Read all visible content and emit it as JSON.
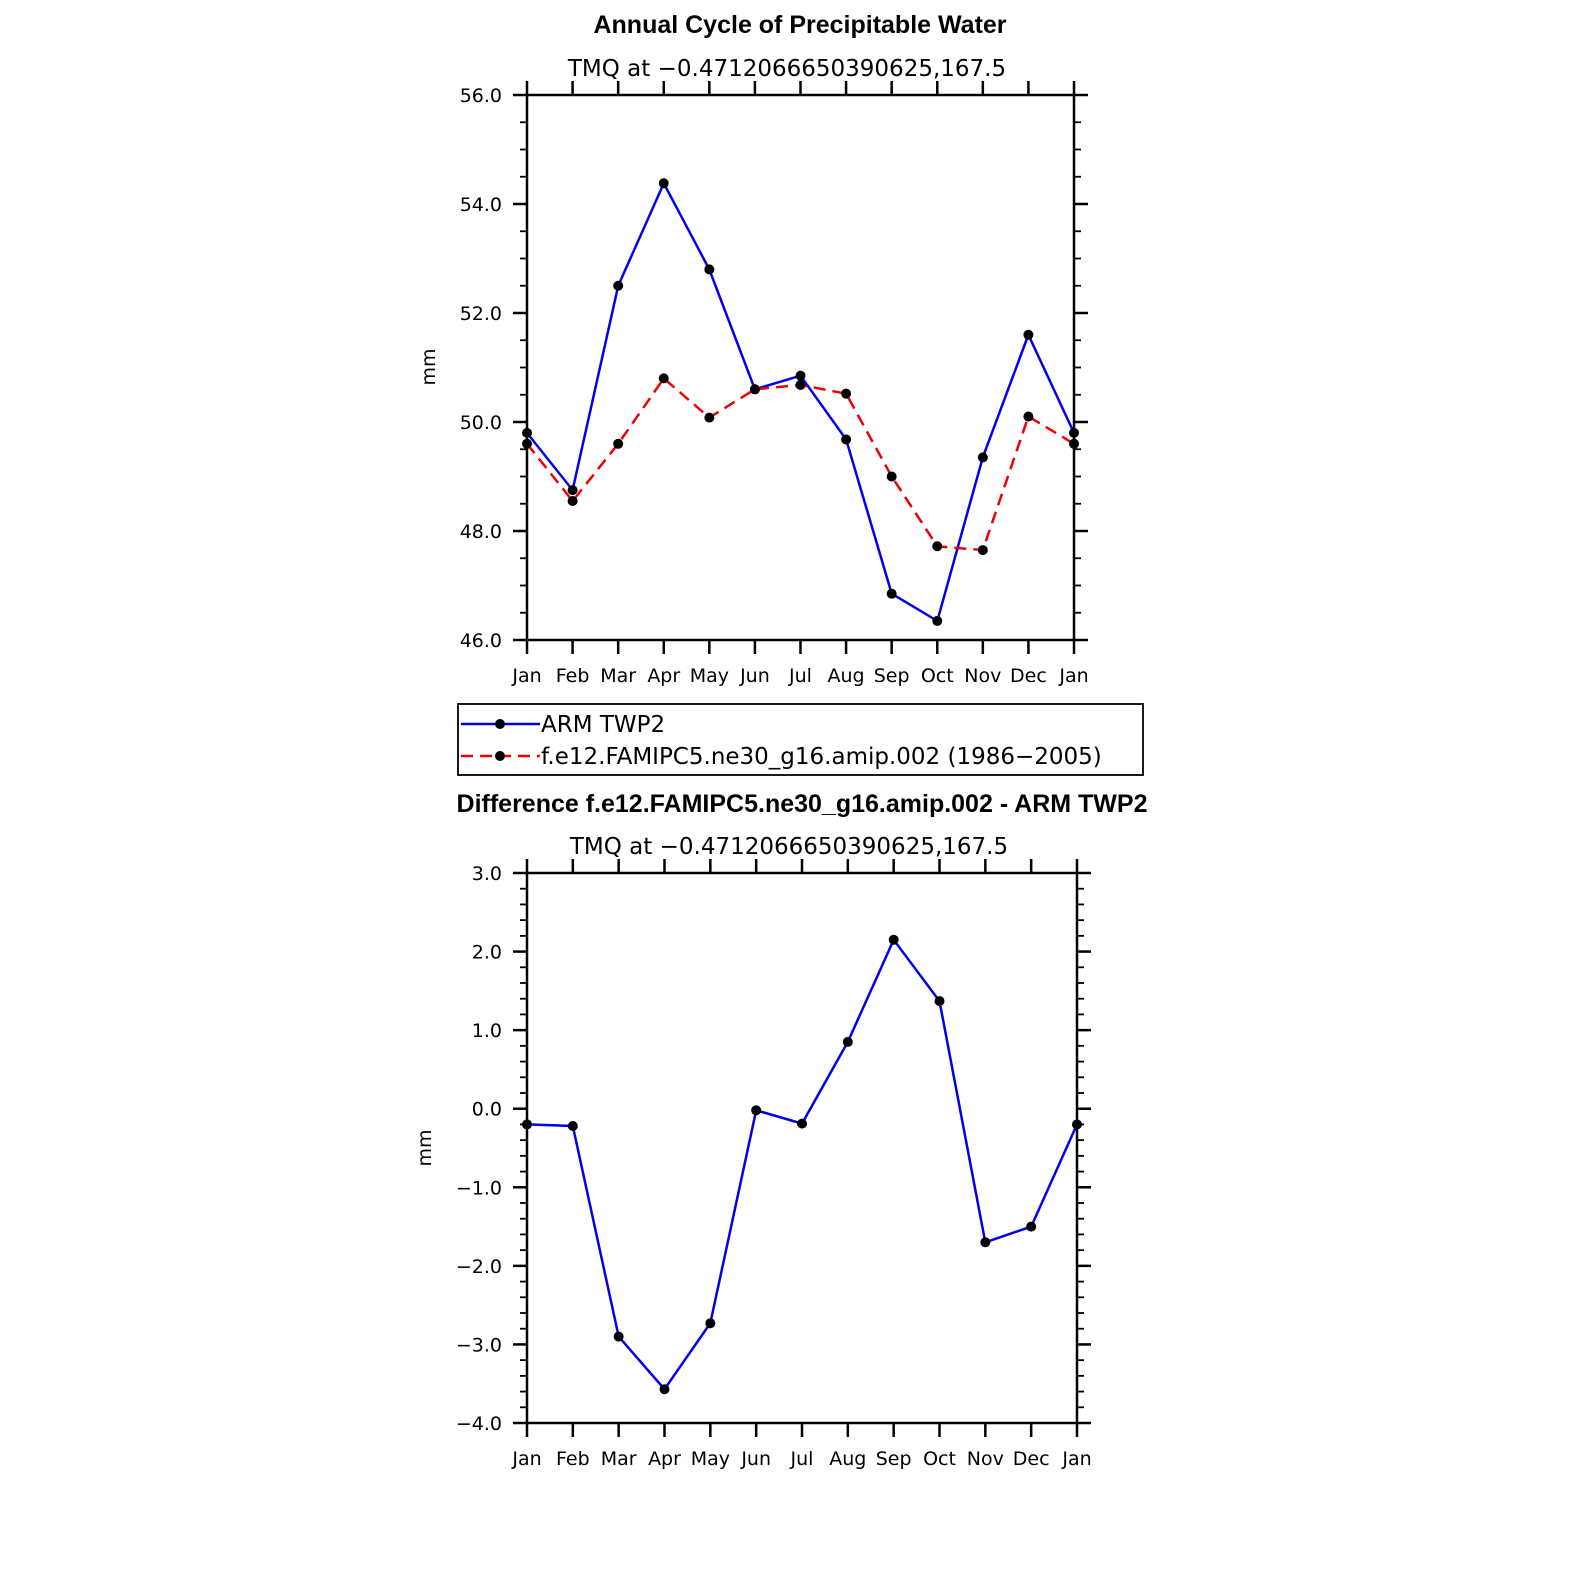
{
  "chart_data": [
    {
      "type": "line",
      "title": "Annual Cycle of Precipitable Water",
      "subtitle": "TMQ at −0.4712066650390625,167.5",
      "xlabel": "",
      "ylabel": "mm",
      "categories": [
        "Jan",
        "Feb",
        "Mar",
        "Apr",
        "May",
        "Jun",
        "Jul",
        "Aug",
        "Sep",
        "Oct",
        "Nov",
        "Dec",
        "Jan"
      ],
      "ylim": [
        46.0,
        56.0
      ],
      "yticks": [
        "46.0",
        "48.0",
        "50.0",
        "52.0",
        "54.0",
        "56.0"
      ],
      "series": [
        {
          "name": "ARM TWP2",
          "color": "#0000ee",
          "dash": "solid",
          "values": [
            49.8,
            48.75,
            52.5,
            54.38,
            52.8,
            50.6,
            50.85,
            49.68,
            46.85,
            46.35,
            49.35,
            51.6,
            49.8
          ]
        },
        {
          "name": "f.e12.FAMIPC5.ne30_g16.amip.002 (1986−2005)",
          "color": "#ee0000",
          "dash": "dashed",
          "values": [
            49.6,
            48.55,
            49.6,
            50.8,
            50.08,
            50.6,
            50.68,
            50.52,
            49.0,
            47.72,
            47.65,
            50.1,
            49.6
          ]
        }
      ],
      "legend": "below"
    },
    {
      "type": "line",
      "title": "Difference f.e12.FAMIPC5.ne30_g16.amip.002 - ARM TWP2",
      "subtitle": "TMQ at −0.4712066650390625,167.5",
      "xlabel": "",
      "ylabel": "mm",
      "categories": [
        "Jan",
        "Feb",
        "Mar",
        "Apr",
        "May",
        "Jun",
        "Jul",
        "Aug",
        "Sep",
        "Oct",
        "Nov",
        "Dec",
        "Jan"
      ],
      "ylim": [
        -4.0,
        3.0
      ],
      "yticks": [
        "−4.0",
        "−3.0",
        "−2.0",
        "−1.0",
        "0.0",
        "1.0",
        "2.0",
        "3.0"
      ],
      "series": [
        {
          "name": "Difference",
          "color": "#0000ee",
          "dash": "solid",
          "values": [
            -0.2,
            -0.22,
            -2.9,
            -3.57,
            -2.73,
            -0.02,
            -0.19,
            0.85,
            2.15,
            1.37,
            -1.7,
            -1.5,
            -0.2
          ]
        }
      ]
    }
  ]
}
